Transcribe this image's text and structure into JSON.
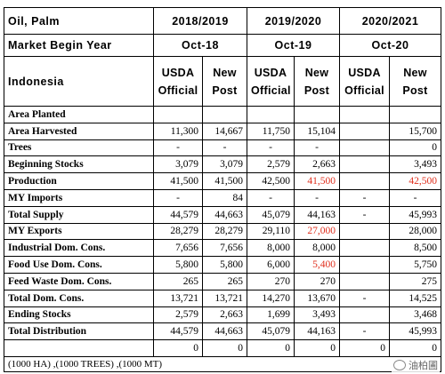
{
  "commodity": "Oil, Palm",
  "market_begin_label": "Market Begin Year",
  "country": "Indonesia",
  "years": [
    {
      "label": "2018/2019",
      "begin": "Oct-18",
      "cols": [
        {
          "l1": "USDA",
          "l2": "Official"
        },
        {
          "l1": "New",
          "l2": "Post"
        }
      ]
    },
    {
      "label": "2019/2020",
      "begin": "Oct-19",
      "cols": [
        {
          "l1": "USDA",
          "l2": "Official"
        },
        {
          "l1": "New",
          "l2": "Post"
        }
      ]
    },
    {
      "label": "2020/2021",
      "begin": "Oct-20",
      "cols": [
        {
          "l1": "USDA",
          "l2": "Official"
        },
        {
          "l1": "New",
          "l2": "Post"
        }
      ]
    }
  ],
  "highlight_color": "#e0301e",
  "rows": [
    {
      "label": "Area Planted",
      "values": [
        "",
        "",
        "",
        "",
        "",
        ""
      ],
      "red": []
    },
    {
      "label": "Area Harvested",
      "values": [
        "11,300",
        "14,667",
        "11,750",
        "15,104",
        "",
        "15,700"
      ],
      "red": []
    },
    {
      "label": "Trees",
      "values": [
        "-",
        "-",
        "-",
        "-",
        "",
        "0"
      ],
      "red": []
    },
    {
      "label": "Beginning Stocks",
      "values": [
        "3,079",
        "3,079",
        "2,579",
        "2,663",
        "",
        "3,493"
      ],
      "red": []
    },
    {
      "label": "Production",
      "values": [
        "41,500",
        "41,500",
        "42,500",
        "41,500",
        "",
        "42,500"
      ],
      "red": [
        3,
        5
      ]
    },
    {
      "label": "MY Imports",
      "values": [
        "-",
        "84",
        "-",
        "-",
        "-",
        "-"
      ],
      "red": []
    },
    {
      "label": "Total Supply",
      "values": [
        "44,579",
        "44,663",
        "45,079",
        "44,163",
        "-",
        "45,993"
      ],
      "red": []
    },
    {
      "label": "MY Exports",
      "values": [
        "28,279",
        "28,279",
        "29,110",
        "27,000",
        "",
        "28,000"
      ],
      "red": [
        3
      ]
    },
    {
      "label": "Industrial Dom. Cons.",
      "values": [
        "7,656",
        "7,656",
        "8,000",
        "8,000",
        "",
        "8,500"
      ],
      "red": []
    },
    {
      "label": "Food Use Dom. Cons.",
      "values": [
        "5,800",
        "5,800",
        "6,000",
        "5,400",
        "",
        "5,750"
      ],
      "red": [
        3
      ]
    },
    {
      "label": "Feed Waste Dom. Cons.",
      "values": [
        "265",
        "265",
        "270",
        "270",
        "",
        "275"
      ],
      "red": []
    },
    {
      "label": "Total Dom. Cons.",
      "values": [
        "13,721",
        "13,721",
        "14,270",
        "13,670",
        "-",
        "14,525"
      ],
      "red": []
    },
    {
      "label": "Ending Stocks",
      "values": [
        "2,579",
        "2,663",
        "1,699",
        "3,493",
        "",
        "3,468"
      ],
      "red": []
    },
    {
      "label": "Total Distribution",
      "values": [
        "44,579",
        "44,663",
        "45,079",
        "44,163",
        "-",
        "45,993"
      ],
      "red": []
    },
    {
      "label": "",
      "values": [
        "0",
        "0",
        "0",
        "0",
        "0",
        "0"
      ],
      "red": []
    }
  ],
  "units_note": "(1000 HA) ,(1000 TREES) ,(1000 MT)",
  "watermark": "油柏圃"
}
